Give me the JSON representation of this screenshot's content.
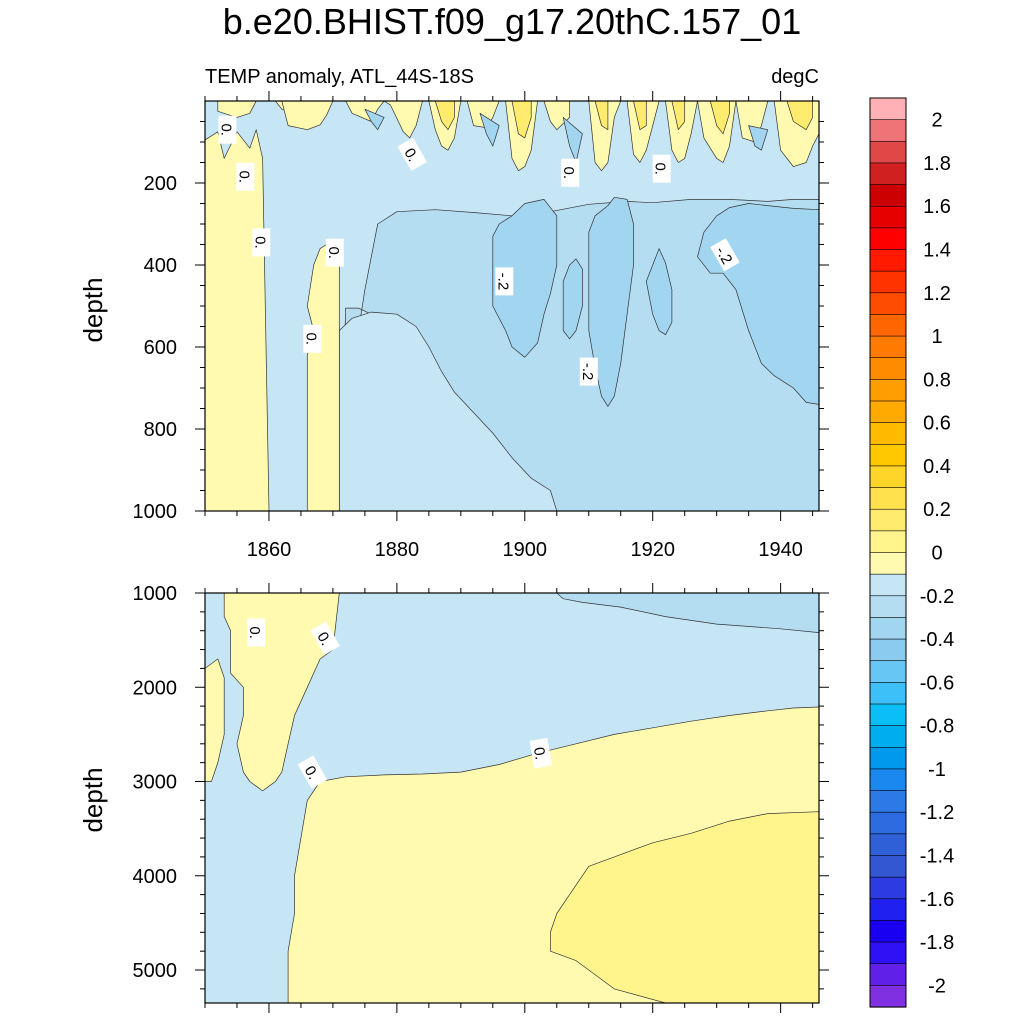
{
  "chart_data": {
    "type": "heatmap",
    "title": "b.e20.BHIST.f09_g17.20thC.157_01",
    "subtitle_left": "TEMP anomaly, ATL_44S-18S",
    "subtitle_right": "degC",
    "x": {
      "ticks": [
        1860,
        1880,
        1900,
        1920,
        1940
      ],
      "tick_labels": [
        "1860",
        "1880",
        "1900",
        "1920",
        "1940"
      ],
      "range": [
        1850,
        1946
      ]
    },
    "panels": [
      {
        "id": "upper",
        "ylabel": "depth",
        "yrange": [
          0,
          1000
        ],
        "yticks": [
          200,
          400,
          600,
          800,
          1000
        ],
        "ytick_labels": [
          "200",
          "400",
          "600",
          "800",
          "1000"
        ],
        "contour_labels": [
          {
            "text": "0.",
            "x": 1853.5,
            "y": 70,
            "rotation": 90
          },
          {
            "text": "0.",
            "x": 1856.3,
            "y": 185,
            "rotation": 90
          },
          {
            "text": "0.",
            "x": 1858.8,
            "y": 345,
            "rotation": 90
          },
          {
            "text": "0.",
            "x": 1866.8,
            "y": 580,
            "rotation": 90
          },
          {
            "text": "0.",
            "x": 1870.3,
            "y": 370,
            "rotation": 90
          },
          {
            "text": "0.",
            "x": 1882.4,
            "y": 130,
            "rotation": 60
          },
          {
            "text": "-.2",
            "x": 1896.8,
            "y": 440,
            "rotation": 90
          },
          {
            "text": "0.",
            "x": 1907.1,
            "y": 175,
            "rotation": 90
          },
          {
            "text": "-.2",
            "x": 1910.0,
            "y": 660,
            "rotation": 90
          },
          {
            "text": "0.",
            "x": 1921.4,
            "y": 165,
            "rotation": 90
          },
          {
            "text": "-.2",
            "x": 1931.3,
            "y": 375,
            "rotation": 60
          }
        ]
      },
      {
        "id": "lower",
        "ylabel": "depth",
        "yrange": [
          1000,
          5350
        ],
        "yticks": [
          1000,
          2000,
          3000,
          4000,
          5000
        ],
        "ytick_labels": [
          "1000",
          "2000",
          "3000",
          "4000",
          "5000"
        ],
        "contour_labels": [
          {
            "text": "0.",
            "x": 1858.0,
            "y": 1420,
            "rotation": 90
          },
          {
            "text": "0.",
            "x": 1868.8,
            "y": 1480,
            "rotation": 60
          },
          {
            "text": "0.",
            "x": 1866.8,
            "y": 2900,
            "rotation": 60
          },
          {
            "text": "0.",
            "x": 1902.5,
            "y": 2700,
            "rotation": 80
          }
        ]
      }
    ],
    "colorbar": {
      "range": [
        -2.1,
        2.1
      ],
      "step": 0.1,
      "labels": [
        "2",
        "1.8",
        "1.6",
        "1.4",
        "1.2",
        "1",
        "0.8",
        "0.6",
        "0.4",
        "0.2",
        "0",
        "-0.2",
        "-0.4",
        "-0.6",
        "-0.8",
        "-1",
        "-1.2",
        "-1.4",
        "-1.6",
        "-1.8",
        "-2"
      ],
      "label_values": [
        2,
        1.8,
        1.6,
        1.4,
        1.2,
        1,
        0.8,
        0.6,
        0.4,
        0.2,
        0,
        -0.2,
        -0.4,
        -0.6,
        -0.8,
        -1,
        -1.2,
        -1.4,
        -1.6,
        -1.8,
        -2
      ],
      "colors_top_to_bottom": [
        "#ffb1b5",
        "#ef7478",
        "#e04848",
        "#d02020",
        "#cc0000",
        "#e60000",
        "#ff0000",
        "#ff1a00",
        "#ff3300",
        "#ff4d00",
        "#ff6600",
        "#ff7a00",
        "#ff8c00",
        "#ff9e00",
        "#ffaa00",
        "#ffbb00",
        "#ffc800",
        "#ffd52a",
        "#ffe14d",
        "#ffeb6e",
        "#fff58c",
        "#fffab0",
        "#c6e6f5",
        "#b4ddf2",
        "#a2d5ef",
        "#8ccbf0",
        "#68c6f4",
        "#3cc0f7",
        "#0cbef6",
        "#00aef0",
        "#0099ee",
        "#1a88ee",
        "#2d79e6",
        "#2d6be0",
        "#3060d8",
        "#3356d2",
        "#2d3ce2",
        "#2020f0",
        "#1a00f0",
        "#3010f4",
        "#6020e8",
        "#8030e0"
      ]
    },
    "colors": {
      "neg_01": "#c6e6f5",
      "neg_02": "#b4ddf2",
      "neg_03": "#a2d5ef",
      "pos_01": "#fffab0",
      "pos_02": "#fff58c",
      "pos_03": "#ffeb6e",
      "pos_04": "#ffe14d"
    }
  }
}
